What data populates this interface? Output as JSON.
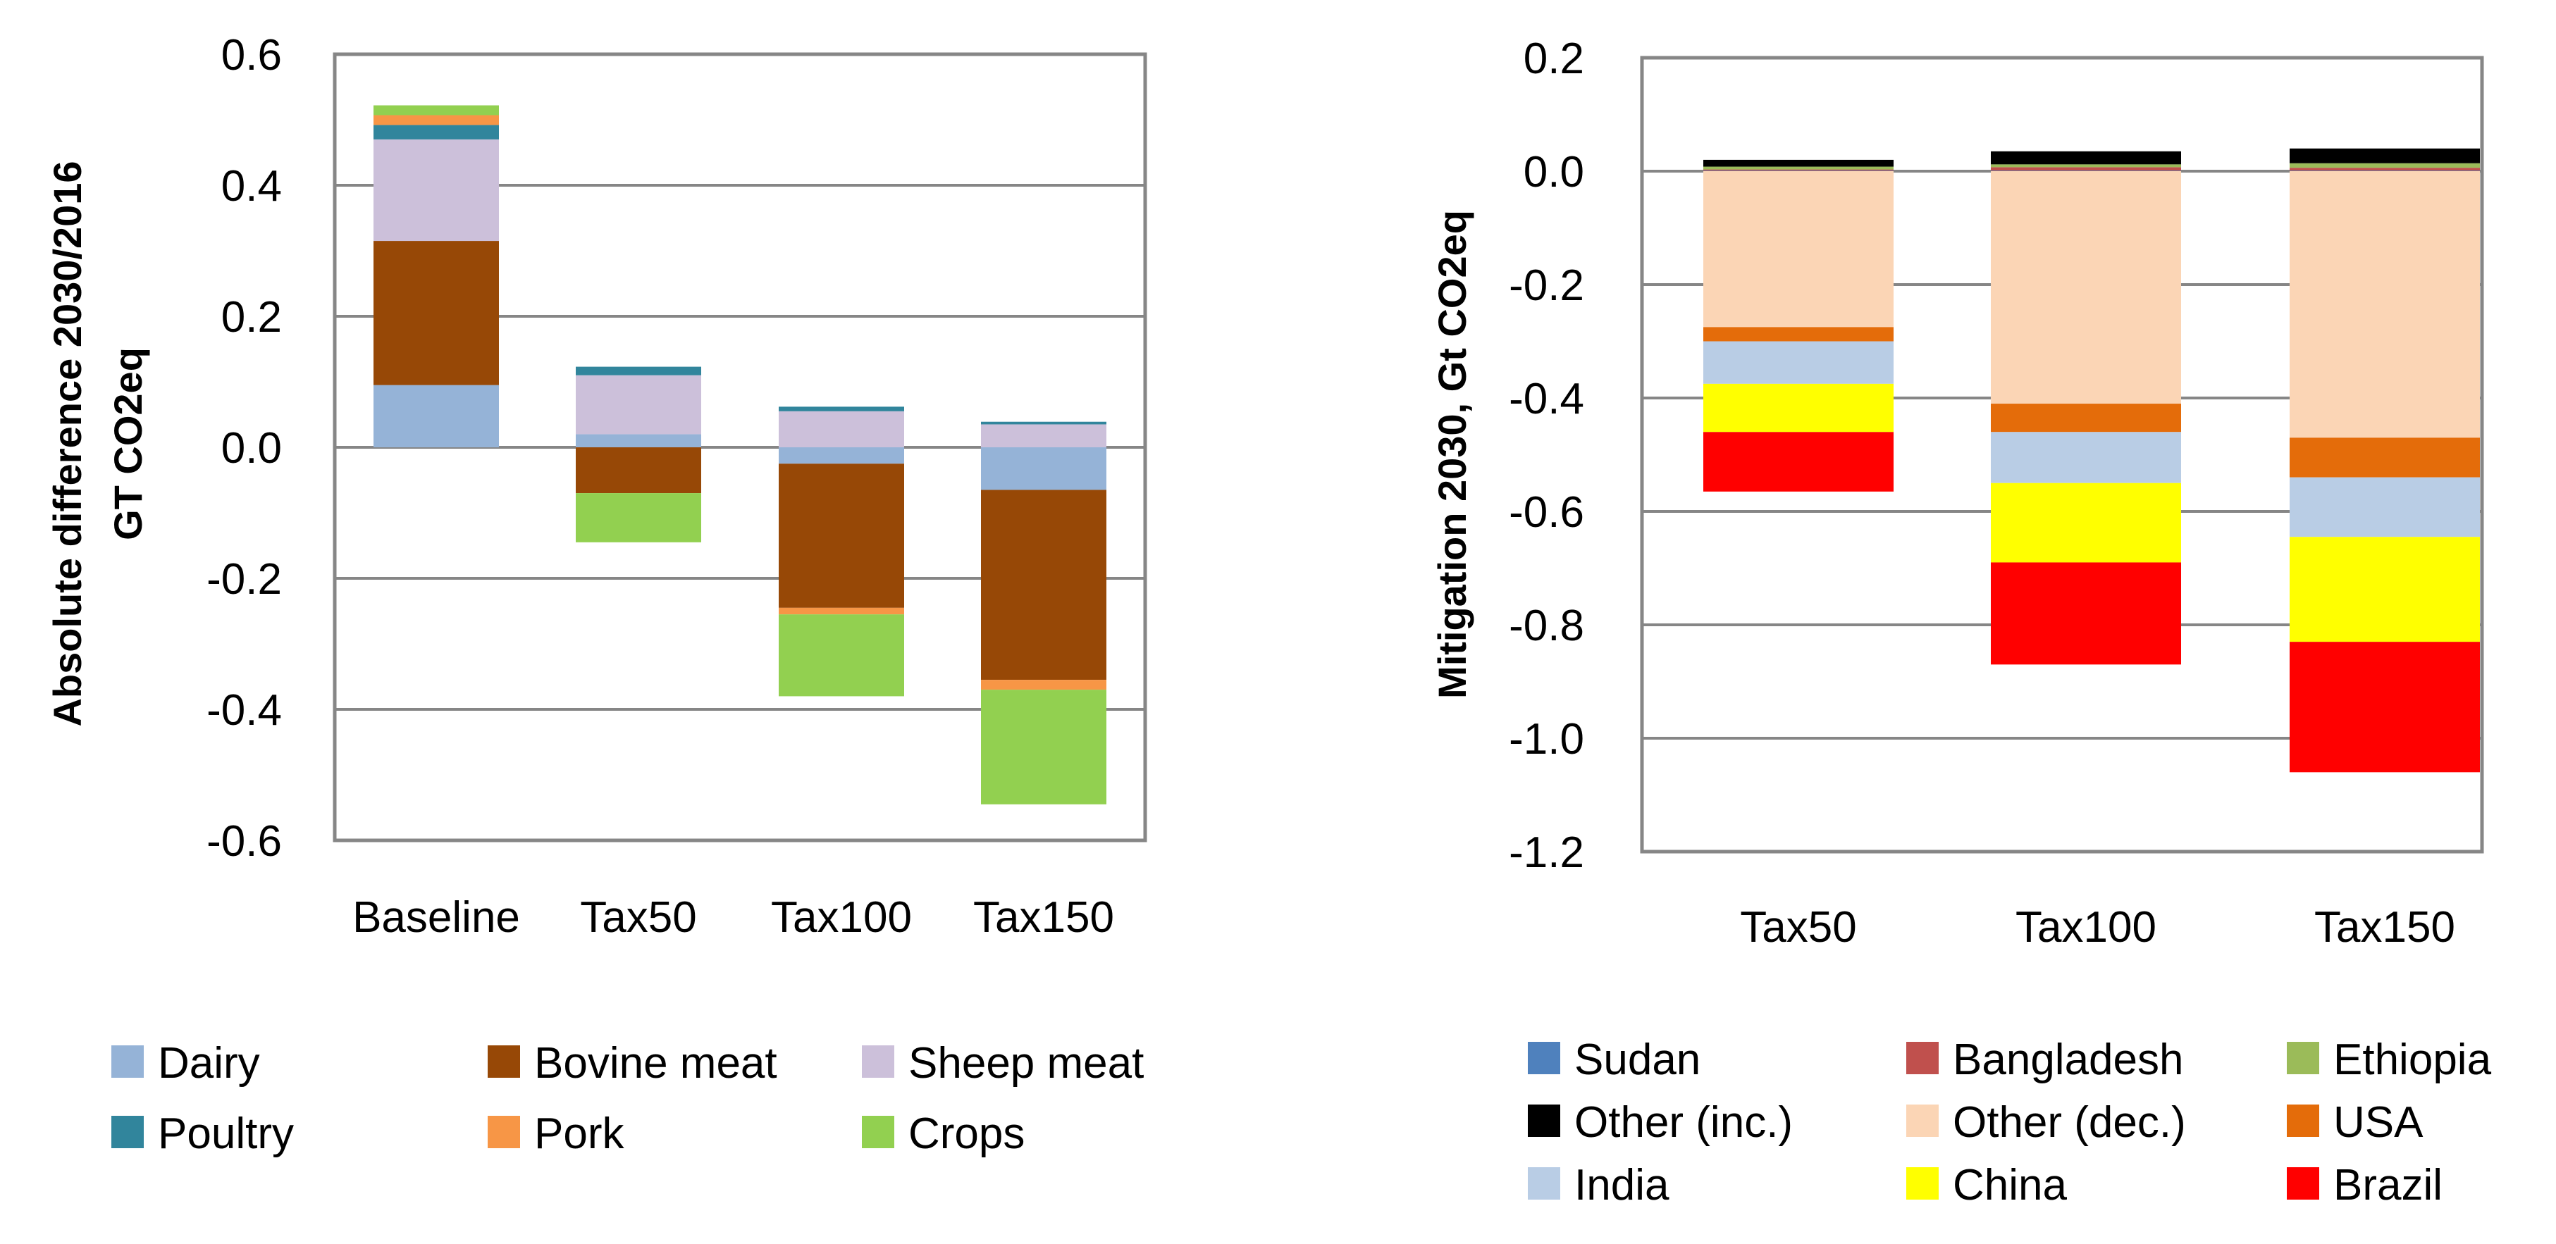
{
  "chart_data": [
    {
      "type": "bar",
      "stacked": true,
      "title": "",
      "xlabel": "",
      "ylabel": [
        "Absolute difference 2030/2016",
        "GT CO2eq"
      ],
      "ylim": [
        -0.6,
        0.6
      ],
      "y_ticks": [
        "0.6",
        "0.4",
        "0.2",
        "0.0",
        "-0.2",
        "-0.4",
        "-0.6"
      ],
      "y_tick_values": [
        0.6,
        0.4,
        0.2,
        0.0,
        -0.2,
        -0.4,
        -0.6
      ],
      "grid": true,
      "categories": [
        "Baseline",
        "Tax50",
        "Tax100",
        "Tax150"
      ],
      "series": [
        {
          "name": "Dairy",
          "color": "#95B3D7",
          "values": [
            0.095,
            0.02,
            -0.025,
            -0.065
          ]
        },
        {
          "name": "Bovine meat",
          "color": "#974806",
          "values": [
            0.22,
            -0.07,
            -0.22,
            -0.29
          ]
        },
        {
          "name": "Sheep meat",
          "color": "#CCC0DA",
          "values": [
            0.155,
            0.09,
            0.055,
            0.035
          ]
        },
        {
          "name": "Poultry",
          "color": "#31859C",
          "values": [
            0.022,
            0.013,
            0.007,
            0.004
          ]
        },
        {
          "name": "Pork",
          "color": "#F79646",
          "values": [
            0.015,
            0.0,
            -0.01,
            -0.015
          ]
        },
        {
          "name": "Crops",
          "color": "#92D050",
          "values": [
            0.015,
            -0.075,
            -0.125,
            -0.175
          ]
        }
      ],
      "legend_position": "bottom"
    },
    {
      "type": "bar",
      "stacked": true,
      "title": "",
      "xlabel": "",
      "ylabel": [
        "Mitigation 2030, Gt CO2eq"
      ],
      "ylim": [
        -1.2,
        0.2
      ],
      "y_ticks": [
        "0.2",
        "0.0",
        "-0.2",
        "-0.4",
        "-0.6",
        "-0.8",
        "-1.0",
        "-1.2"
      ],
      "y_tick_values": [
        0.2,
        0.0,
        -0.2,
        -0.4,
        -0.6,
        -0.8,
        -1.0,
        -1.2
      ],
      "grid": true,
      "categories": [
        "Tax50",
        "Tax100",
        "Tax150"
      ],
      "series": [
        {
          "name": "Sudan",
          "color": "#4F81BD",
          "values": [
            0.001,
            0.001,
            0.001
          ]
        },
        {
          "name": "Bangladesh",
          "color": "#C0504D",
          "values": [
            0.002,
            0.006,
            0.005
          ]
        },
        {
          "name": "Ethiopia",
          "color": "#9BBB59",
          "values": [
            0.005,
            0.005,
            0.008
          ]
        },
        {
          "name": "Other (inc.)",
          "color": "#000000",
          "values": [
            0.012,
            0.023,
            0.026
          ]
        },
        {
          "name": "Other (dec.)",
          "color": "#FBD5B5",
          "values": [
            -0.275,
            -0.41,
            -0.47
          ]
        },
        {
          "name": "USA",
          "color": "#E46C0A",
          "values": [
            -0.025,
            -0.05,
            -0.07
          ]
        },
        {
          "name": "India",
          "color": "#B9CDE5",
          "values": [
            -0.075,
            -0.09,
            -0.105
          ]
        },
        {
          "name": "China",
          "color": "#FFFF00",
          "values": [
            -0.085,
            -0.14,
            -0.185
          ]
        },
        {
          "name": "Brazil",
          "color": "#FF0000",
          "values": [
            -0.105,
            -0.18,
            -0.23
          ]
        }
      ],
      "legend_position": "bottom"
    }
  ]
}
